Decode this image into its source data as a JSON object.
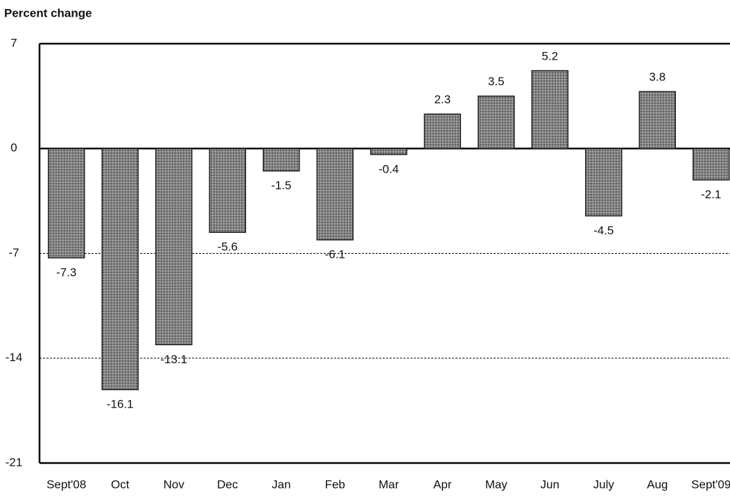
{
  "chart_data": {
    "type": "bar",
    "title": "Percent change",
    "categories": [
      "Sept'08",
      "Oct",
      "Nov",
      "Dec",
      "Jan",
      "Feb",
      "Mar",
      "Apr",
      "May",
      "Jun",
      "July",
      "Aug",
      "Sept'09"
    ],
    "values": [
      -7.3,
      -16.1,
      -13.1,
      -5.6,
      -1.5,
      -6.1,
      -0.4,
      2.3,
      3.5,
      5.2,
      -4.5,
      3.8,
      -2.1
    ],
    "color": "#7d7d7d",
    "ylim": [
      -21,
      7
    ],
    "yticks": [
      -21,
      -14,
      -7,
      0,
      7
    ],
    "grid": true
  }
}
